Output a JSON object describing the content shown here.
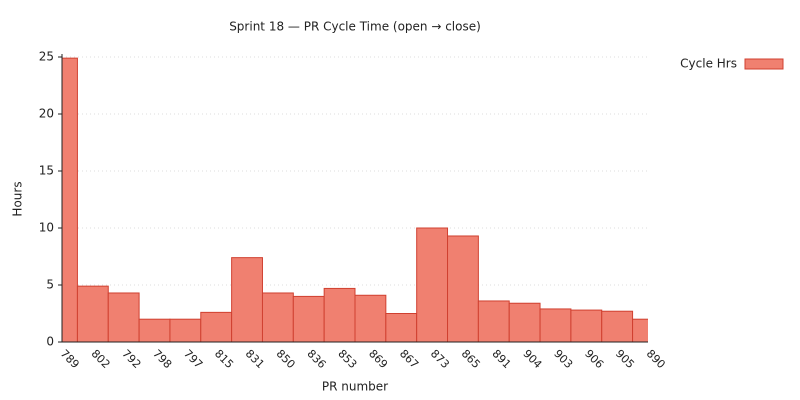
{
  "chart_data": {
    "type": "bar",
    "title": "Sprint 18 — PR Cycle Time (open → close)",
    "x_label": "PR number",
    "y_label": "Hours",
    "categories": [
      "789",
      "802",
      "792",
      "798",
      "797",
      "815",
      "831",
      "850",
      "836",
      "853",
      "869",
      "867",
      "873",
      "865",
      "891",
      "904",
      "903",
      "906",
      "905",
      "890"
    ],
    "series": [
      {
        "name": "Cycle Hrs",
        "color": "#f08070",
        "values": [
          24.9,
          4.9,
          4.3,
          2.0,
          2.0,
          2.6,
          7.4,
          4.3,
          4.0,
          4.7,
          4.1,
          2.5,
          10.0,
          9.3,
          3.6,
          3.4,
          2.9,
          2.8,
          2.7,
          2.0
        ]
      }
    ],
    "ylim": [
      0,
      25
    ],
    "yticks": [
      0,
      5,
      10,
      15,
      20,
      25
    ],
    "grid": true,
    "legend": "top-right"
  }
}
